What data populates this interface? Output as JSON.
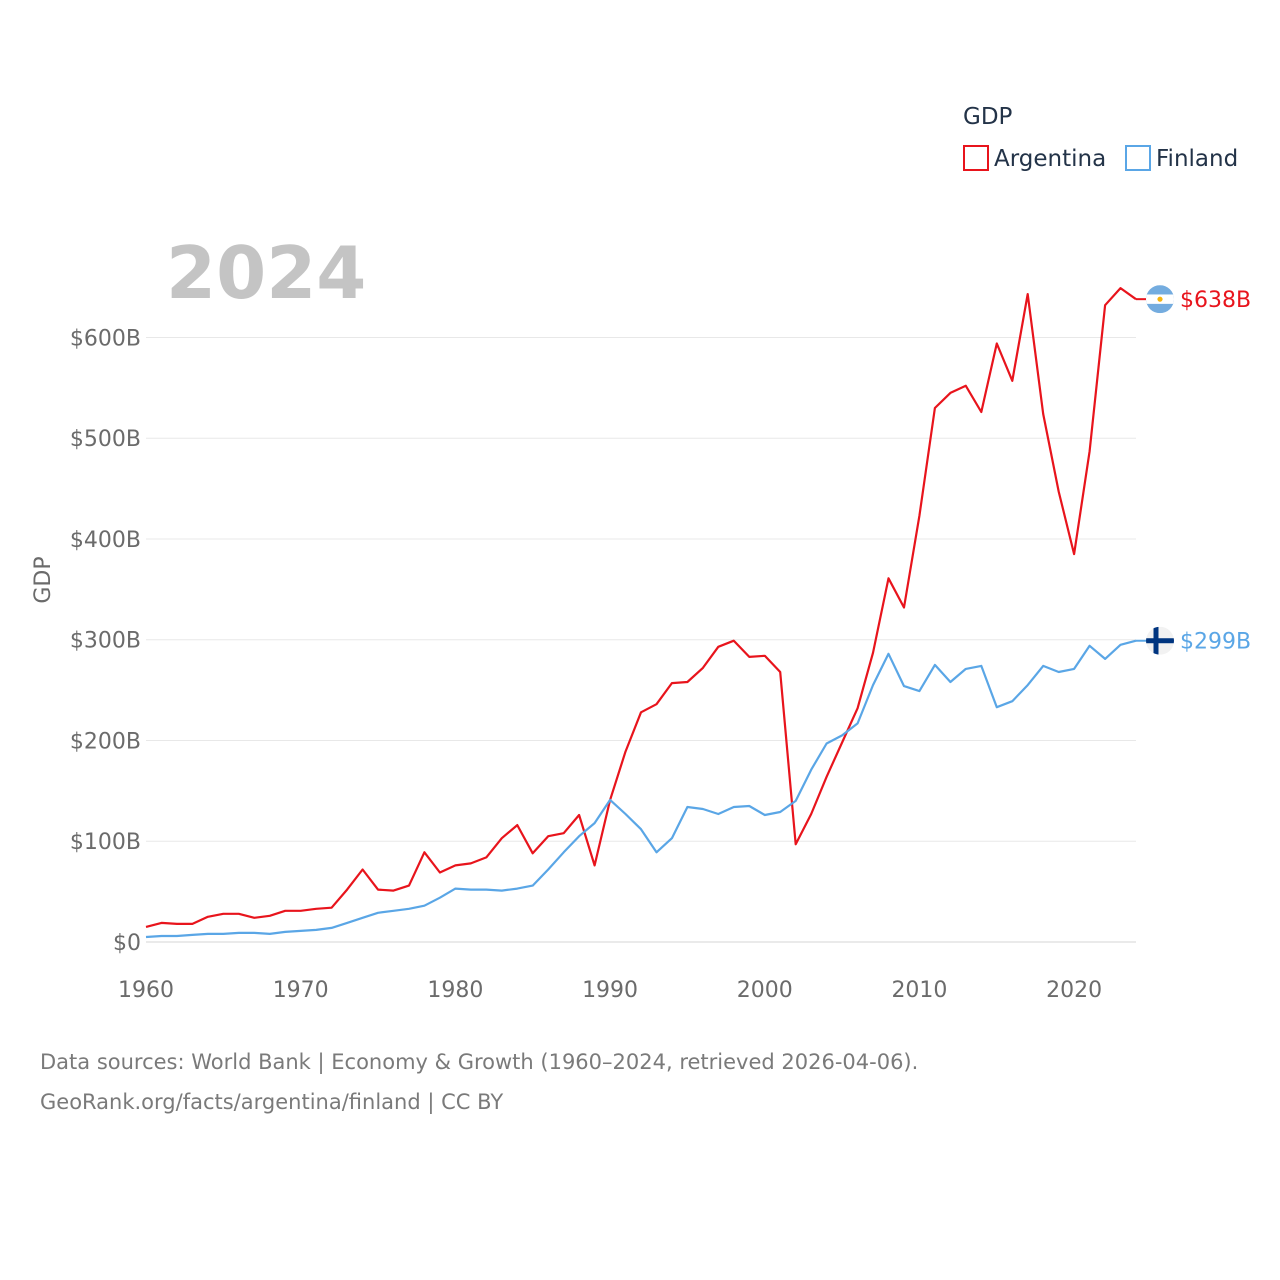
{
  "chart_data": {
    "type": "line",
    "title": "",
    "year_label": "2024",
    "ylabel": "GDP",
    "xlabel": "",
    "xlim": [
      1960,
      2024
    ],
    "ylim": [
      0,
      660
    ],
    "y_ticks": [
      {
        "value": 0,
        "label": "$0"
      },
      {
        "value": 100,
        "label": "$100B"
      },
      {
        "value": 200,
        "label": "$200B"
      },
      {
        "value": 300,
        "label": "$300B"
      },
      {
        "value": 400,
        "label": "$400B"
      },
      {
        "value": 500,
        "label": "$500B"
      },
      {
        "value": 600,
        "label": "$600B"
      }
    ],
    "x_ticks": [
      {
        "value": 1960,
        "label": "1960"
      },
      {
        "value": 1970,
        "label": "1970"
      },
      {
        "value": 1980,
        "label": "1980"
      },
      {
        "value": 1990,
        "label": "1990"
      },
      {
        "value": 2000,
        "label": "2000"
      },
      {
        "value": 2010,
        "label": "2010"
      },
      {
        "value": 2020,
        "label": "2020"
      }
    ],
    "legend": {
      "title": "GDP",
      "position": "top-right"
    },
    "x": [
      1960,
      1961,
      1962,
      1963,
      1964,
      1965,
      1966,
      1967,
      1968,
      1969,
      1970,
      1971,
      1972,
      1973,
      1974,
      1975,
      1976,
      1977,
      1978,
      1979,
      1980,
      1981,
      1982,
      1983,
      1984,
      1985,
      1986,
      1987,
      1988,
      1989,
      1990,
      1991,
      1992,
      1993,
      1994,
      1995,
      1996,
      1997,
      1998,
      1999,
      2000,
      2001,
      2002,
      2003,
      2004,
      2005,
      2006,
      2007,
      2008,
      2009,
      2010,
      2011,
      2012,
      2013,
      2014,
      2015,
      2016,
      2017,
      2018,
      2019,
      2020,
      2021,
      2022,
      2023,
      2024
    ],
    "series": [
      {
        "name": "Argentina",
        "color": "#e8141c",
        "end_label": "$638B",
        "flag": "argentina-flag",
        "values": [
          15,
          19,
          18,
          18,
          25,
          28,
          28,
          24,
          26,
          31,
          31,
          33,
          34,
          52,
          72,
          52,
          51,
          56,
          89,
          69,
          76,
          78,
          84,
          103,
          116,
          88,
          105,
          108,
          126,
          76,
          141,
          189,
          228,
          236,
          257,
          258,
          272,
          293,
          299,
          283,
          284,
          268,
          97,
          127,
          164,
          198,
          232,
          287,
          361,
          332,
          423,
          530,
          545,
          552,
          526,
          594,
          557,
          643,
          524,
          447,
          385,
          487,
          632,
          649,
          638
        ]
      },
      {
        "name": "Finland",
        "color": "#5aa6e6",
        "end_label": "$299B",
        "flag": "finland-flag",
        "values": [
          5,
          6,
          6,
          7,
          8,
          8,
          9,
          9,
          8,
          10,
          11,
          12,
          14,
          19,
          24,
          29,
          31,
          33,
          36,
          44,
          53,
          52,
          52,
          51,
          53,
          56,
          72,
          89,
          105,
          118,
          141,
          127,
          112,
          89,
          103,
          134,
          132,
          127,
          134,
          135,
          126,
          129,
          140,
          171,
          197,
          205,
          217,
          255,
          286,
          254,
          249,
          275,
          258,
          271,
          274,
          233,
          239,
          255,
          274,
          268,
          271,
          294,
          281,
          295,
          299
        ]
      }
    ]
  },
  "source": {
    "line1": "Data sources: World Bank | Economy & Growth (1960–2024, retrieved 2026-04-06).",
    "line2": "GeoRank.org/facts/argentina/finland | CC BY"
  }
}
